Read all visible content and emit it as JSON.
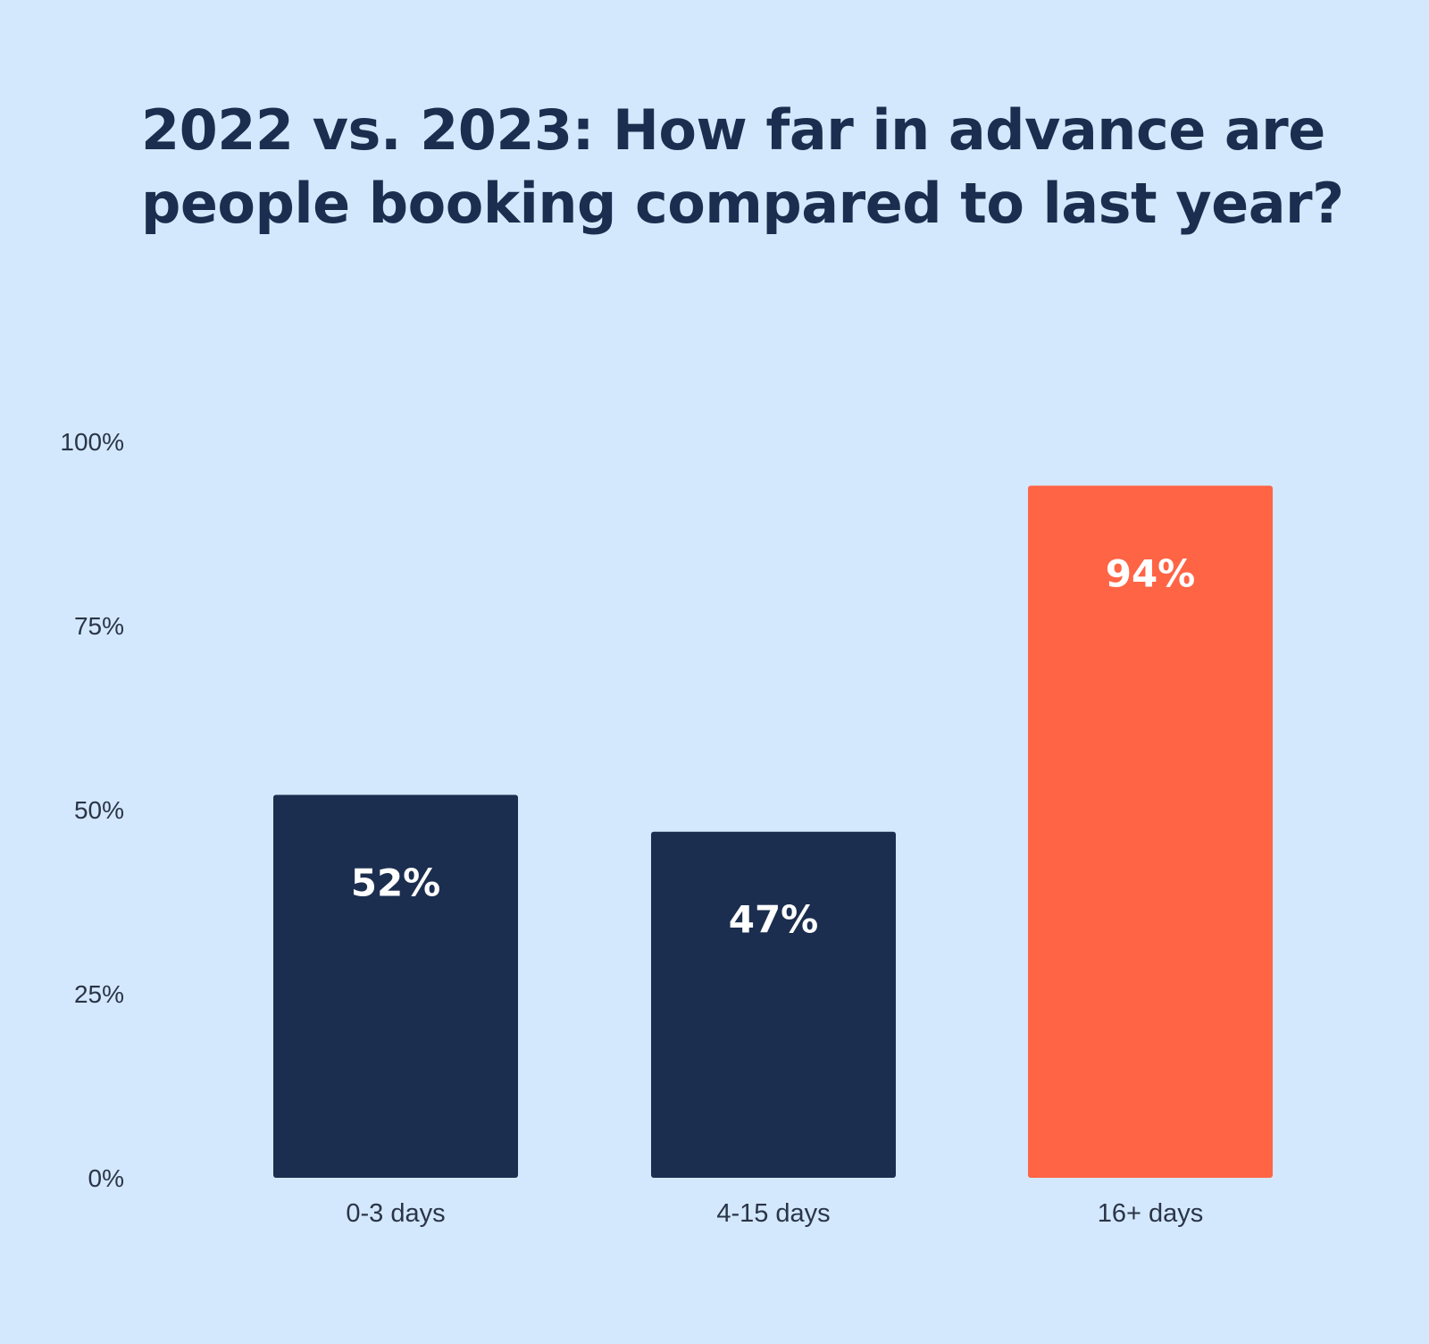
{
  "chart_data": {
    "type": "bar",
    "title": "2022 vs. 2023: How far in advance are people booking compared to last year?",
    "categories": [
      "0-3 days",
      "4-15 days",
      "16+ days"
    ],
    "values": [
      52,
      47,
      94
    ],
    "data_labels": [
      "52%",
      "47%",
      "94%"
    ],
    "bar_colors": [
      "#1c2e4f",
      "#1c2e4f",
      "#ff6445"
    ],
    "ylim": [
      0,
      100
    ],
    "yticks": [
      0,
      25,
      50,
      75,
      100
    ],
    "ytick_labels": [
      "0%",
      "25%",
      "50%",
      "75%",
      "100%"
    ],
    "xlabel": "",
    "ylabel": "",
    "grid": false,
    "legend": "none"
  }
}
